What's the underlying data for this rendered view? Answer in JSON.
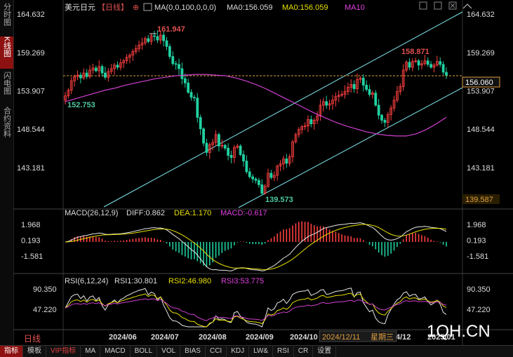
{
  "sidebar": {
    "tabs": [
      {
        "label": "分时图",
        "active": false
      },
      {
        "label": "K线图",
        "active": true
      },
      {
        "label": "闪电图",
        "active": false
      },
      {
        "label": "合约资料",
        "active": false
      }
    ]
  },
  "header": {
    "symbol": "美元日元",
    "period": "【日线】",
    "plus": "⊕",
    "ma_params": "MA(0,0,100,0,0,0)",
    "ma0": "MA0:156.059",
    "ma0_color": "MA0:156.059",
    "ma10": "MA10"
  },
  "bottom_bar": {
    "period_label": "日线",
    "items": [
      "指标",
      "模板",
      "VIP指标",
      "MA",
      "MACD",
      "BOLL",
      "VOL",
      "BIAS",
      "CCI",
      "KDJ",
      "LW&",
      "RSI",
      "CR",
      "设置"
    ]
  },
  "watermark": "1QH.CN",
  "cursor_info": {
    "date": "2024/12/11",
    "weekday": "星期三"
  },
  "chart_data": [
    {
      "type": "candlestick",
      "y_ticks": [
        "164.632",
        "159.269",
        "153.907",
        "148.544",
        "143.181"
      ],
      "ylim": [
        137.4,
        166.4
      ],
      "x_ticks": [
        "2024/06",
        "2024/07",
        "2024/08",
        "2024/09",
        "2024/10",
        "4/12",
        "2025/01"
      ],
      "annotations": {
        "high": "161.947",
        "low": "139.573",
        "recent_high": "158.871",
        "start_low": "152.753"
      },
      "current_price": "156.060",
      "cursor_price": "139.587",
      "closes": [
        153.2,
        154.0,
        155.3,
        155.9,
        156.1,
        155.7,
        156.4,
        155.9,
        156.8,
        157.1,
        156.7,
        157.3,
        156.4,
        155.8,
        156.6,
        157.0,
        157.5,
        157.2,
        157.8,
        158.1,
        158.6,
        158.9,
        159.4,
        159.8,
        160.3,
        160.6,
        161.2,
        160.8,
        161.6,
        161.5,
        161.0,
        161.7,
        160.9,
        160.1,
        158.7,
        157.7,
        157.6,
        157.0,
        155.6,
        155.0,
        153.7,
        153.0,
        152.9,
        150.2,
        148.6,
        146.6,
        145.3,
        146.4,
        146.7,
        147.8,
        146.2,
        146.3,
        145.9,
        144.9,
        144.6,
        146.0,
        146.2,
        145.0,
        144.1,
        142.6,
        141.9,
        141.6,
        141.4,
        140.8,
        139.6,
        140.6,
        142.4,
        141.8,
        142.1,
        143.4,
        143.7,
        144.4,
        143.8,
        144.7,
        146.8,
        147.8,
        148.5,
        148.9,
        149.0,
        149.9,
        149.3,
        149.8,
        150.4,
        151.9,
        152.4,
        151.9,
        152.1,
        152.6,
        153.1,
        153.3,
        153.4,
        153.8,
        154.4,
        154.8,
        154.2,
        155.5,
        155.7,
        154.7,
        154.1,
        153.4,
        153.6,
        151.9,
        150.5,
        149.8,
        149.5,
        150.6,
        151.5,
        152.6,
        153.8,
        154.5,
        156.8,
        157.9,
        157.2,
        158.0,
        158.1,
        157.5,
        157.7,
        158.1,
        157.6,
        157.2,
        157.5,
        158.0,
        157.6,
        156.5,
        156.1
      ],
      "ma0": [
        152.4,
        152.8,
        153.2,
        153.6,
        154.0,
        154.3,
        154.7,
        155.0,
        155.3,
        155.6,
        155.8,
        156.0,
        156.1,
        156.2,
        156.2,
        156.1,
        156.0,
        155.7,
        155.3,
        154.8,
        154.2,
        153.5,
        152.8,
        152.1,
        151.4,
        150.7,
        150.1,
        149.5,
        149.0,
        148.6,
        148.2,
        147.9,
        147.7,
        147.6,
        147.6,
        147.9,
        148.5,
        149.3,
        150.2
      ]
    },
    {
      "type": "macd",
      "title": "MACD(26,12,9)",
      "diff_label": "DIFF:0.862",
      "dea_label": "DEA:1.170",
      "macd_label": "MACD:-0.617",
      "y_ticks": [
        "1.968",
        "0.193",
        "-1.581"
      ],
      "ylim": [
        -3.0,
        2.6
      ]
    },
    {
      "type": "rsi",
      "title": "RSI(6,12,24)",
      "rsi1_label": "RSI1:30.801",
      "rsi2_label": "RSI2:46.980",
      "rsi3_label": "RSI3:53.775",
      "y_ticks": [
        "90.350",
        "47.220"
      ],
      "ylim": [
        20,
        95
      ]
    }
  ]
}
